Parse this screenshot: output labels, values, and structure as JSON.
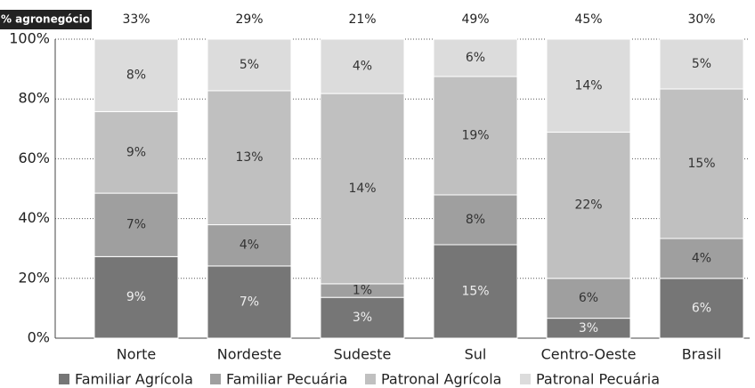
{
  "chart_data": {
    "type": "stacked_bar_100",
    "header": "% agronegócio",
    "categories": [
      "Norte",
      "Nordeste",
      "Sudeste",
      "Sul",
      "Centro-Oeste",
      "Brasil"
    ],
    "totals": [
      33,
      29,
      21,
      49,
      45,
      30
    ],
    "total_labels": [
      "33%",
      "29%",
      "21%",
      "49%",
      "45%",
      "30%"
    ],
    "series": [
      {
        "name": "Familiar Agrícola",
        "color": "#767676",
        "values": [
          9,
          7,
          3,
          15,
          3,
          6
        ],
        "value_labels": [
          "9%",
          "7%",
          "3%",
          "15%",
          "3%",
          "6%"
        ]
      },
      {
        "name": "Familiar Pecuária",
        "color": "#9f9f9f",
        "values": [
          7,
          4,
          1,
          8,
          6,
          4
        ],
        "value_labels": [
          "7%",
          "4%",
          "1%",
          "8%",
          "6%",
          "4%"
        ]
      },
      {
        "name": "Patronal Agrícola",
        "color": "#c0c0c0",
        "values": [
          9,
          13,
          14,
          19,
          22,
          15
        ],
        "value_labels": [
          "9%",
          "13%",
          "14%",
          "19%",
          "22%",
          "15%"
        ]
      },
      {
        "name": "Patronal Pecuária",
        "color": "#dcdcdc",
        "values": [
          8,
          5,
          4,
          6,
          14,
          5
        ],
        "value_labels": [
          "8%",
          "5%",
          "4%",
          "6%",
          "14%",
          "5%"
        ]
      }
    ],
    "ylim": [
      0,
      100
    ],
    "yticks": [
      {
        "value": 0,
        "label": "0%"
      },
      {
        "value": 20,
        "label": "20%"
      },
      {
        "value": 40,
        "label": "40%"
      },
      {
        "value": 60,
        "label": "60%"
      },
      {
        "value": 80,
        "label": "80%"
      },
      {
        "value": 100,
        "label": "100%"
      }
    ],
    "grid": true
  }
}
